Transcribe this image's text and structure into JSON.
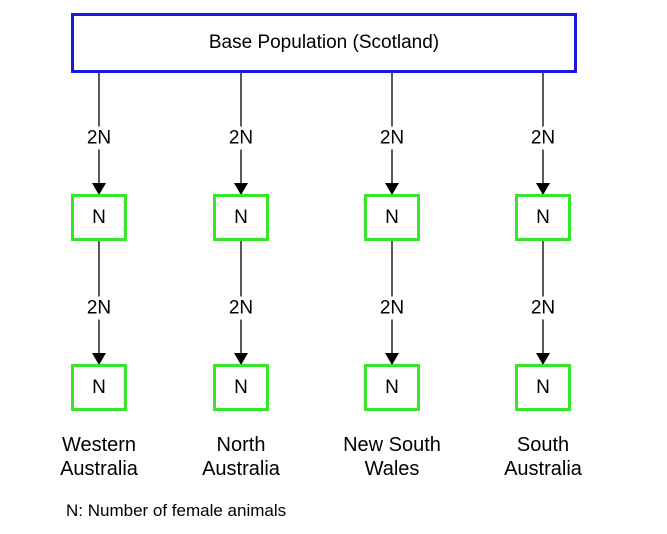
{
  "base_population": {
    "label": "Base Population (Scotland)"
  },
  "edge_label": "2N",
  "node_label": "N",
  "regions": [
    {
      "name": "Western\nAustralia"
    },
    {
      "name": "North\nAustralia"
    },
    {
      "name": "New South\nWales"
    },
    {
      "name": "South\nAustralia"
    }
  ],
  "footnote": "N: Number of female animals",
  "colors": {
    "base_border": "#1a1adf",
    "node_border": "#35e62a",
    "line": "#000000"
  }
}
